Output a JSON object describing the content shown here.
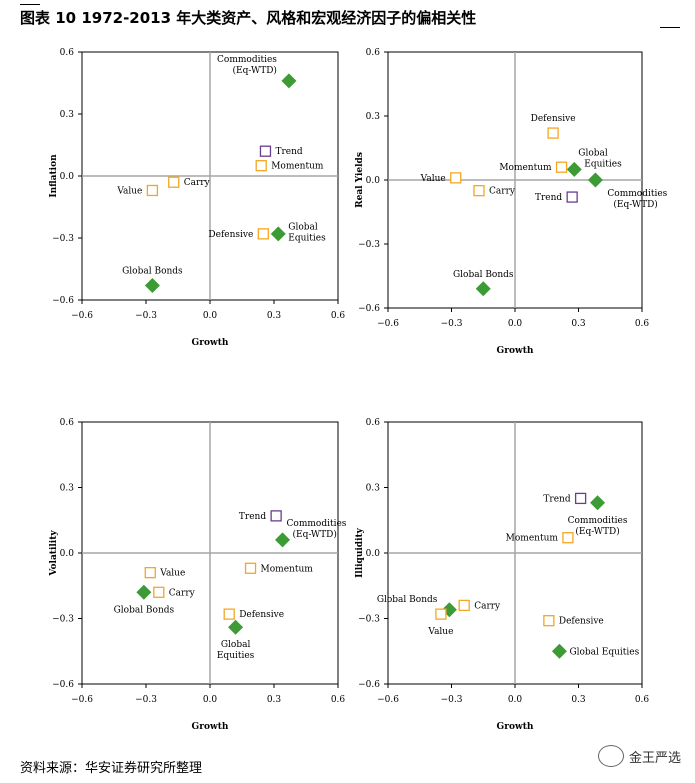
{
  "title": "图表 10 1972-2013 年大类资产、风格和宏观经济因子的偏相关性",
  "source": "资料来源：华安证券研究所整理",
  "watermark": "金王严选",
  "chart_data": [
    {
      "type": "scatter",
      "xlabel": "Growth",
      "ylabel": "Inflation",
      "xlim": [
        -0.6,
        0.6
      ],
      "ylim": [
        -0.6,
        0.6
      ],
      "xticks": [
        "−0.6",
        "−0.3",
        "0.0",
        "0.3",
        "0.6"
      ],
      "yticks": [
        "0.6",
        "0.3",
        "0.0",
        "−0.3",
        "−0.6"
      ],
      "points": [
        {
          "label": "Commodities (Eq-WTD)",
          "lines": [
            "Commodities",
            "(Eq-WTD)"
          ],
          "x": 0.37,
          "y": 0.46,
          "kind": "asset",
          "side": "left-top"
        },
        {
          "label": "Trend",
          "lines": [
            "Trend"
          ],
          "x": 0.26,
          "y": 0.12,
          "kind": "trend",
          "side": "right"
        },
        {
          "label": "Momentum",
          "lines": [
            "Momentum"
          ],
          "x": 0.24,
          "y": 0.05,
          "kind": "style",
          "side": "right"
        },
        {
          "label": "Value",
          "lines": [
            "Value"
          ],
          "x": -0.27,
          "y": -0.07,
          "kind": "style",
          "side": "left"
        },
        {
          "label": "Carry",
          "lines": [
            "Carry"
          ],
          "x": -0.17,
          "y": -0.03,
          "kind": "style",
          "side": "right"
        },
        {
          "label": "Defensive",
          "lines": [
            "Defensive"
          ],
          "x": 0.25,
          "y": -0.28,
          "kind": "style",
          "side": "left"
        },
        {
          "label": "Global Equities",
          "lines": [
            "Global",
            "Equities"
          ],
          "x": 0.32,
          "y": -0.28,
          "kind": "asset",
          "side": "right"
        },
        {
          "label": "Global Bonds",
          "lines": [
            "Global Bonds"
          ],
          "x": -0.27,
          "y": -0.53,
          "kind": "asset",
          "side": "top"
        }
      ]
    },
    {
      "type": "scatter",
      "xlabel": "Growth",
      "ylabel": "Real Yields",
      "xlim": [
        -0.6,
        0.6
      ],
      "ylim": [
        -0.6,
        0.6
      ],
      "xticks": [
        "−0.6",
        "−0.3",
        "0.0",
        "0.3",
        "0.6"
      ],
      "yticks": [
        "0.6",
        "0.3",
        "0.0",
        "−0.3",
        "−0.6"
      ],
      "points": [
        {
          "label": "Defensive",
          "lines": [
            "Defensive"
          ],
          "x": 0.18,
          "y": 0.22,
          "kind": "style",
          "side": "top"
        },
        {
          "label": "Global Equities",
          "lines": [
            "Global",
            "Equities"
          ],
          "x": 0.28,
          "y": 0.05,
          "kind": "asset",
          "side": "right-top"
        },
        {
          "label": "Momentum",
          "lines": [
            "Momentum"
          ],
          "x": 0.22,
          "y": 0.06,
          "kind": "style",
          "side": "left"
        },
        {
          "label": "Value",
          "lines": [
            "Value"
          ],
          "x": -0.28,
          "y": 0.01,
          "kind": "style",
          "side": "left"
        },
        {
          "label": "Carry",
          "lines": [
            "Carry"
          ],
          "x": -0.17,
          "y": -0.05,
          "kind": "style",
          "side": "right"
        },
        {
          "label": "Commodities (Eq-WTD)",
          "lines": [
            "Commodities",
            "(Eq-WTD)"
          ],
          "x": 0.38,
          "y": 0.0,
          "kind": "asset",
          "side": "right-below"
        },
        {
          "label": "Trend",
          "lines": [
            "Trend"
          ],
          "x": 0.27,
          "y": -0.08,
          "kind": "trend",
          "side": "left"
        },
        {
          "label": "Global Bonds",
          "lines": [
            "Global Bonds"
          ],
          "x": -0.15,
          "y": -0.51,
          "kind": "asset",
          "side": "top"
        }
      ]
    },
    {
      "type": "scatter",
      "xlabel": "Growth",
      "ylabel": "Volatility",
      "xlim": [
        -0.6,
        0.6
      ],
      "ylim": [
        -0.6,
        0.6
      ],
      "xticks": [
        "−0.6",
        "−0.3",
        "0.0",
        "0.3",
        "0.6"
      ],
      "yticks": [
        "0.6",
        "0.3",
        "0.0",
        "−0.3",
        "−0.6"
      ],
      "points": [
        {
          "label": "Trend",
          "lines": [
            "Trend"
          ],
          "x": 0.31,
          "y": 0.17,
          "kind": "trend",
          "side": "left"
        },
        {
          "label": "Commodities (Eq-WTD)",
          "lines": [
            "Commodities",
            "(Eq-WTD)"
          ],
          "x": 0.34,
          "y": 0.06,
          "kind": "asset",
          "side": "right-top"
        },
        {
          "label": "Momentum",
          "lines": [
            "Momentum"
          ],
          "x": 0.19,
          "y": -0.07,
          "kind": "style",
          "side": "right"
        },
        {
          "label": "Value",
          "lines": [
            "Value"
          ],
          "x": -0.28,
          "y": -0.09,
          "kind": "style",
          "side": "right"
        },
        {
          "label": "Carry",
          "lines": [
            "Carry"
          ],
          "x": -0.24,
          "y": -0.18,
          "kind": "style",
          "side": "right"
        },
        {
          "label": "Global Bonds",
          "lines": [
            "Global Bonds"
          ],
          "x": -0.31,
          "y": -0.18,
          "kind": "asset",
          "side": "below"
        },
        {
          "label": "Defensive",
          "lines": [
            "Defensive"
          ],
          "x": 0.09,
          "y": -0.28,
          "kind": "style",
          "side": "right"
        },
        {
          "label": "Global Equities",
          "lines": [
            "Global",
            "Equities"
          ],
          "x": 0.12,
          "y": -0.34,
          "kind": "asset",
          "side": "below"
        }
      ]
    },
    {
      "type": "scatter",
      "xlabel": "Growth",
      "ylabel": "Illiquidity",
      "xlim": [
        -0.6,
        0.6
      ],
      "ylim": [
        -0.6,
        0.6
      ],
      "xticks": [
        "−0.6",
        "−0.3",
        "0.0",
        "0.3",
        "0.6"
      ],
      "yticks": [
        "0.6",
        "0.3",
        "0.0",
        "−0.3",
        "−0.6"
      ],
      "points": [
        {
          "label": "Trend",
          "lines": [
            "Trend"
          ],
          "x": 0.31,
          "y": 0.25,
          "kind": "trend",
          "side": "left"
        },
        {
          "label": "Commodities (Eq-WTD)",
          "lines": [
            "Commodities",
            "(Eq-WTD)"
          ],
          "x": 0.39,
          "y": 0.23,
          "kind": "asset",
          "side": "below"
        },
        {
          "label": "Momentum",
          "lines": [
            "Momentum"
          ],
          "x": 0.25,
          "y": 0.07,
          "kind": "style",
          "side": "left"
        },
        {
          "label": "Global Bonds",
          "lines": [
            "Global Bonds"
          ],
          "x": -0.31,
          "y": -0.26,
          "kind": "asset",
          "side": "left-top"
        },
        {
          "label": "Carry",
          "lines": [
            "Carry"
          ],
          "x": -0.24,
          "y": -0.24,
          "kind": "style",
          "side": "right"
        },
        {
          "label": "Value",
          "lines": [
            "Value"
          ],
          "x": -0.35,
          "y": -0.28,
          "kind": "style",
          "side": "below"
        },
        {
          "label": "Defensive",
          "lines": [
            "Defensive"
          ],
          "x": 0.16,
          "y": -0.31,
          "kind": "style",
          "side": "right"
        },
        {
          "label": "Global Equities",
          "lines": [
            "Global Equities"
          ],
          "x": 0.21,
          "y": -0.45,
          "kind": "asset",
          "side": "right"
        }
      ]
    }
  ],
  "colors": {
    "asset": "#3d9b35",
    "style": "#f5a623",
    "trend": "#6a3d8f",
    "axis": "#000000",
    "zero": "#a6a6a6"
  }
}
